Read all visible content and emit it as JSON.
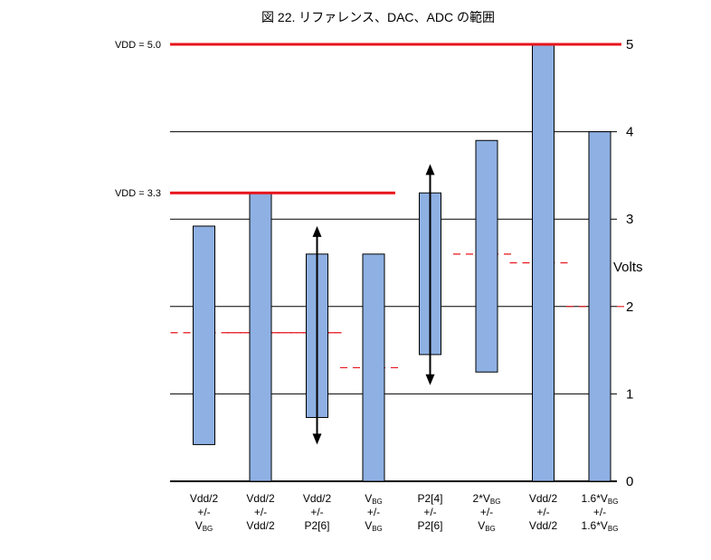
{
  "chart_data": {
    "type": "bar",
    "title": "図 22. リファレンス、DAC、ADC の範囲",
    "ylabel": "Volts",
    "ylim": [
      0,
      5
    ],
    "yticks": [
      "0",
      "1",
      "2",
      "3",
      "4",
      "5"
    ],
    "grid": true,
    "colors": {
      "bar": "#8EB0E3",
      "bar_border": "#000000",
      "vdd_line": "#E8141C",
      "mid_line": "#E8141C",
      "grid": "#000000"
    },
    "vdd_lines": [
      {
        "label": "VDD = 5.0",
        "value": 5.0,
        "x_end_category": 7
      },
      {
        "label": "VDD = 3.3",
        "value": 3.3,
        "x_end_category": 3
      }
    ],
    "categories": [
      {
        "lines": [
          [
            {
              "t": "Vdd/2"
            }
          ],
          [
            {
              "t": "+/-"
            }
          ],
          [
            {
              "t": "V"
            },
            {
              "t": "BG",
              "sub": true
            }
          ]
        ],
        "low": 0.42,
        "high": 2.92,
        "mid": 1.7,
        "mid_from": 0,
        "mid_to": 2
      },
      {
        "lines": [
          [
            {
              "t": "Vdd/2"
            }
          ],
          [
            {
              "t": "+/-"
            }
          ],
          [
            {
              "t": "Vdd/2"
            }
          ]
        ],
        "low": 0.0,
        "high": 3.3,
        "mid": 1.7,
        "mid_from": 1,
        "mid_to": 2
      },
      {
        "lines": [
          [
            {
              "t": "Vdd/2"
            }
          ],
          [
            {
              "t": "+/-"
            }
          ],
          [
            {
              "t": "P2[6]"
            }
          ]
        ],
        "low": 0.73,
        "high": 2.6,
        "mid": null,
        "arrow": [
          0.42,
          2.92
        ]
      },
      {
        "lines": [
          [
            {
              "t": "V"
            },
            {
              "t": "BG",
              "sub": true
            }
          ],
          [
            {
              "t": "+/-"
            }
          ],
          [
            {
              "t": "V"
            },
            {
              "t": "BG",
              "sub": true
            }
          ]
        ],
        "low": 0.0,
        "high": 2.6,
        "mid": 1.3,
        "mid_from": 3,
        "mid_to": 3
      },
      {
        "lines": [
          [
            {
              "t": "P2[4]"
            }
          ],
          [
            {
              "t": "+/-"
            }
          ],
          [
            {
              "t": "P2[6]"
            }
          ]
        ],
        "low": 1.45,
        "high": 3.3,
        "mid": null,
        "arrow": [
          1.1,
          3.63
        ]
      },
      {
        "lines": [
          [
            {
              "t": "2*V"
            },
            {
              "t": "BG",
              "sub": true
            }
          ],
          [
            {
              "t": "+/-"
            }
          ],
          [
            {
              "t": "V"
            },
            {
              "t": "BG",
              "sub": true
            }
          ]
        ],
        "low": 1.25,
        "high": 3.9,
        "mid": 2.6,
        "mid_from": 5,
        "mid_to": 5
      },
      {
        "lines": [
          [
            {
              "t": "Vdd/2"
            }
          ],
          [
            {
              "t": "+/-"
            }
          ],
          [
            {
              "t": "Vdd/2"
            }
          ]
        ],
        "low": 0.0,
        "high": 5.0,
        "mid": 2.5,
        "mid_from": 6,
        "mid_to": 6
      },
      {
        "lines": [
          [
            {
              "t": "1.6*V"
            },
            {
              "t": "BG",
              "sub": true
            }
          ],
          [
            {
              "t": "+/-"
            }
          ],
          [
            {
              "t": "1.6*V"
            },
            {
              "t": "BG",
              "sub": true
            }
          ]
        ],
        "low": 0.0,
        "high": 4.0,
        "mid": 2.0,
        "mid_from": 7,
        "mid_to": 7
      }
    ]
  }
}
